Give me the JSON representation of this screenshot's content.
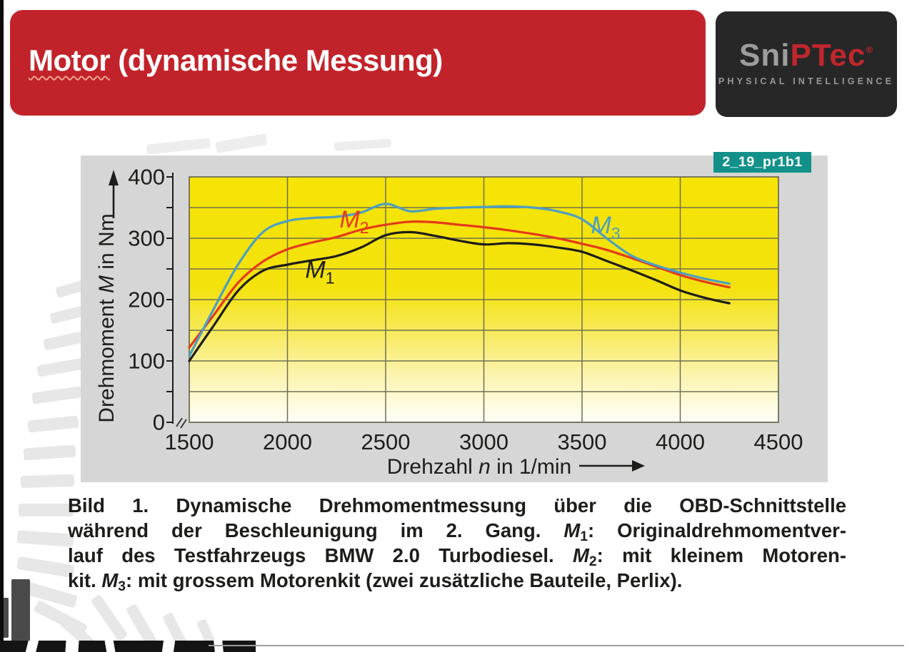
{
  "slide": {
    "title": {
      "word": "Motor",
      "rest": " (dynamische Messung)"
    },
    "logo": {
      "brand_gray": "Sni",
      "brand_red": "PTec",
      "registered": "®",
      "subtitle": "PHYSICAL INTELLIGENCE"
    },
    "figure_tag": "2_19_pr1b1",
    "caption_lines": [
      [
        {
          "t": "Bild 1. Dynamische Drehmomentmessung über die OBD-Schnittstelle"
        }
      ],
      [
        {
          "t": "während der Beschleunigung im 2. Gang. "
        },
        {
          "t": "M",
          "i": true
        },
        {
          "t": "1",
          "sub": true
        },
        {
          "t": ": Originaldrehmomentver-"
        }
      ],
      [
        {
          "t": "lauf des Testfahrzeugs BMW 2.0 Turbodiesel. "
        },
        {
          "t": "M",
          "i": true
        },
        {
          "t": "2",
          "sub": true
        },
        {
          "t": ": mit kleinem Motoren-"
        }
      ],
      [
        {
          "t": "kit. "
        },
        {
          "t": "M",
          "i": true
        },
        {
          "t": "3",
          "sub": true
        },
        {
          "t": ": mit grossem Motorenkit (zwei zusätzliche Bauteile, Perlix)."
        }
      ]
    ],
    "colors": {
      "banner_red": "#c2232a",
      "logo_background": "#272727",
      "figure_tag_teal": "#12918a",
      "panel_gray": "#d6d6d6"
    }
  },
  "chart_data": {
    "type": "line",
    "title": "",
    "xlabel_runs": [
      {
        "t": "Drehzahl "
      },
      {
        "t": "n",
        "i": true
      },
      {
        "t": " in 1/min"
      }
    ],
    "ylabel_runs": [
      {
        "t": "Drehmoment "
      },
      {
        "t": "M",
        "i": true
      },
      {
        "t": " in Nm"
      }
    ],
    "xlim": [
      1500,
      4500
    ],
    "ylim": [
      0,
      400
    ],
    "x_ticks": [
      1500,
      2000,
      2500,
      3000,
      3500,
      4000,
      4500
    ],
    "y_ticks": [
      0,
      100,
      200,
      300,
      400
    ],
    "x_grid_step": 500,
    "y_grid_step": 50,
    "axis_break_x": true,
    "grid_color": "#6f6f55",
    "axis_color": "#1d1d1b",
    "plot_bg_stops": [
      [
        "0%",
        "#f5e405"
      ],
      [
        "45%",
        "#f4e20d"
      ],
      [
        "62%",
        "#f7e955"
      ],
      [
        "78%",
        "#fbf2a2"
      ],
      [
        "92%",
        "#fefbdd"
      ],
      [
        "100%",
        "#fffdf6"
      ]
    ],
    "x": [
      1500,
      1625,
      1750,
      1875,
      2000,
      2125,
      2250,
      2375,
      2500,
      2625,
      2750,
      2875,
      3000,
      3125,
      3250,
      3375,
      3500,
      3625,
      3750,
      3875,
      4000,
      4125,
      4250
    ],
    "series": [
      {
        "name": "M1",
        "color": "#1d1d1b",
        "values": [
          100,
          158,
          215,
          247,
          257,
          264,
          271,
          285,
          305,
          310,
          304,
          296,
          290,
          292,
          290,
          285,
          278,
          263,
          248,
          232,
          215,
          203,
          194
        ],
        "label_at": {
          "x": 2165,
          "y": 248
        }
      },
      {
        "name": "M2",
        "color": "#e5391b",
        "values": [
          122,
          175,
          228,
          262,
          282,
          293,
          302,
          314,
          322,
          327,
          326,
          322,
          318,
          313,
          307,
          300,
          291,
          281,
          268,
          254,
          240,
          229,
          220
        ],
        "label_at": {
          "x": 2340,
          "y": 330
        }
      },
      {
        "name": "M3",
        "color": "#4b9fc4",
        "values": [
          108,
          185,
          258,
          310,
          328,
          333,
          335,
          342,
          356,
          344,
          348,
          350,
          351,
          352,
          350,
          344,
          331,
          300,
          272,
          256,
          244,
          234,
          226
        ],
        "label_at": {
          "x": 3620,
          "y": 321
        }
      }
    ]
  }
}
